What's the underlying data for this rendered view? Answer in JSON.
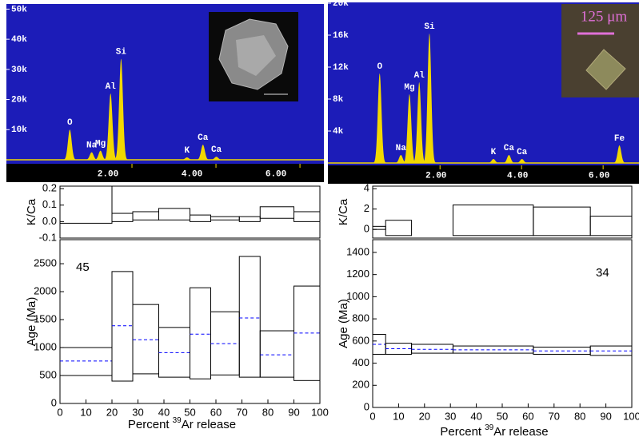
{
  "chart_data": [
    {
      "type": "spectrum",
      "background": "#1c1cb8",
      "color": "#f2d800",
      "xlim": [
        -0.99,
        6.57
      ],
      "ylim": [
        0,
        51700
      ],
      "xticks": [
        {
          "value": 2,
          "label": "2.00"
        },
        {
          "value": 4,
          "label": "4.00"
        },
        {
          "value": 6,
          "label": "6.00"
        }
      ],
      "yticks": [
        {
          "value": 10000,
          "label": "10k"
        },
        {
          "value": 20000,
          "label": "20k"
        },
        {
          "value": 30000,
          "label": "30k"
        },
        {
          "value": 40000,
          "label": "40k"
        },
        {
          "value": 50000,
          "label": "50k"
        }
      ],
      "peaks": [
        {
          "label": "O",
          "energy": 0.52,
          "height": 10000
        },
        {
          "label": "Na",
          "energy": 1.04,
          "height": 2500
        },
        {
          "label": "Mg",
          "energy": 1.25,
          "height": 3000
        },
        {
          "label": "Al",
          "energy": 1.49,
          "height": 22000
        },
        {
          "label": "Si",
          "energy": 1.74,
          "height": 33500
        },
        {
          "label": "K",
          "energy": 3.31,
          "height": 800
        },
        {
          "label": "Ca",
          "energy": 3.69,
          "height": 5000
        },
        {
          "label": "Ca",
          "energy": 4.01,
          "height": 1000
        }
      ]
    },
    {
      "type": "step",
      "ylabel": "K/Ca",
      "color": "#000000",
      "xlim": [
        0,
        100
      ],
      "ylim": [
        -0.1,
        0.215
      ],
      "yticks": [
        -0.1,
        {
          "value": 0,
          "label": "0.0"
        },
        0.1,
        0.2
      ],
      "bins": [
        0,
        20,
        28,
        38,
        50,
        58,
        69,
        77,
        90,
        100
      ],
      "low": [
        -0.01,
        0.0,
        0.01,
        0.01,
        0.0,
        0.01,
        0.0,
        0.02,
        0.0
      ],
      "high": [
        0.25,
        0.05,
        0.06,
        0.08,
        0.04,
        0.03,
        0.03,
        0.09,
        0.06
      ]
    },
    {
      "type": "step",
      "ylabel": "Age (Ma)",
      "xlabel": [
        "Percent",
        "39",
        "Ar release"
      ],
      "color": "#000000",
      "mean_color": "#0000ff",
      "annotation": "45",
      "xlim": [
        0,
        100
      ],
      "ylim": [
        0,
        2930
      ],
      "xticks": [
        0,
        10,
        20,
        30,
        40,
        50,
        60,
        70,
        80,
        90,
        100
      ],
      "yticks": [
        0,
        500,
        1000,
        1500,
        2000,
        2500
      ],
      "bins": [
        0,
        20,
        28,
        38,
        50,
        58,
        69,
        77,
        90,
        100
      ],
      "low": [
        500,
        400,
        530,
        470,
        440,
        510,
        470,
        470,
        410
      ],
      "high": [
        1000,
        2360,
        1770,
        1360,
        2070,
        1640,
        2630,
        1300,
        2100
      ],
      "mean": [
        760,
        1390,
        1140,
        910,
        1240,
        1070,
        1530,
        870,
        1260
      ]
    },
    {
      "type": "spectrum",
      "background": "#1c1cb8",
      "color": "#f2d800",
      "inset_label": "125 μm",
      "xlim": [
        -0.75,
        6.88
      ],
      "ylim": [
        0,
        20100
      ],
      "xticks": [
        {
          "value": 2,
          "label": "2.00"
        },
        {
          "value": 4,
          "label": "4.00"
        },
        {
          "value": 6,
          "label": "6.00"
        }
      ],
      "yticks": [
        {
          "value": 4000,
          "label": "4k"
        },
        {
          "value": 8000,
          "label": "8k"
        },
        {
          "value": 12000,
          "label": "12k"
        },
        {
          "value": 16000,
          "label": "16k"
        },
        {
          "value": 20000,
          "label": "20k"
        }
      ],
      "peaks": [
        {
          "label": "O",
          "energy": 0.52,
          "height": 11200
        },
        {
          "label": "Na",
          "energy": 1.04,
          "height": 1000
        },
        {
          "label": "Mg",
          "energy": 1.25,
          "height": 8600
        },
        {
          "label": "Al",
          "energy": 1.49,
          "height": 10100
        },
        {
          "label": "Si",
          "energy": 1.74,
          "height": 16200
        },
        {
          "label": "K",
          "energy": 3.31,
          "height": 500
        },
        {
          "label": "Ca",
          "energy": 3.69,
          "height": 1000
        },
        {
          "label": "Ca",
          "energy": 4.01,
          "height": 500
        },
        {
          "label": "Fe",
          "energy": 6.4,
          "height": 2200
        }
      ]
    },
    {
      "type": "step",
      "ylabel": "K/Ca",
      "color": "#000000",
      "xlim": [
        0,
        100
      ],
      "ylim": [
        -0.85,
        4.25
      ],
      "yticks": [
        0,
        2,
        4
      ],
      "bins": [
        0,
        5,
        15,
        31,
        62,
        84,
        100
      ],
      "low": [
        0.0,
        -0.6,
        null,
        -0.6,
        -0.6,
        -0.6
      ],
      "high": [
        0.3,
        0.9,
        null,
        2.4,
        2.2,
        1.3
      ]
    },
    {
      "type": "step",
      "ylabel": "Age (Ma)",
      "xlabel": [
        "Percent",
        "39",
        "Ar release"
      ],
      "color": "#000000",
      "mean_color": "#0000ff",
      "annotation": "34",
      "xlim": [
        0,
        100
      ],
      "ylim": [
        0,
        1515
      ],
      "xticks": [
        0,
        10,
        20,
        30,
        40,
        50,
        60,
        70,
        80,
        90,
        100
      ],
      "yticks": [
        0,
        200,
        400,
        600,
        800,
        1000,
        1200,
        1400
      ],
      "bins": [
        0,
        5,
        15,
        31,
        62,
        84,
        100
      ],
      "low": [
        480,
        480,
        490,
        490,
        480,
        470
      ],
      "high": [
        660,
        580,
        570,
        555,
        545,
        555
      ],
      "mean": [
        570,
        530,
        525,
        520,
        510,
        510
      ]
    }
  ]
}
